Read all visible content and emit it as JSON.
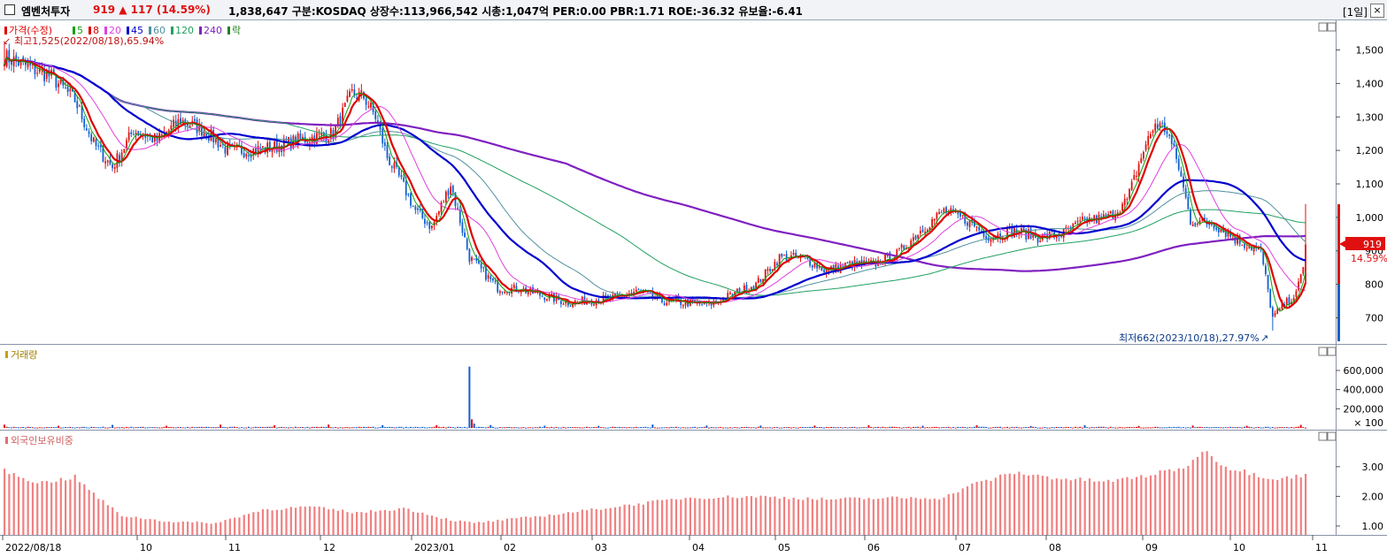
{
  "header": {
    "name": "엠벤처투자",
    "price_change": "919 ▲ 117 (14.59%)",
    "stats": "1,838,647  구분:KOSDAQ 상장수:113,966,542 시총:1,047억 PER:0.00 PBR:1.71 ROE:-36.32 유보율:-6.41",
    "period": "[1일]",
    "close_label": "×"
  },
  "price_panel": {
    "legend": [
      {
        "label": "가격(수정)",
        "color": "#e00000"
      },
      {
        "label": "5",
        "color": "#10a010"
      },
      {
        "label": "8",
        "color": "#e00000"
      },
      {
        "label": "20",
        "color": "#e040e0"
      },
      {
        "label": "45",
        "color": "#0000d0"
      },
      {
        "label": "60",
        "color": "#5090a0"
      },
      {
        "label": "120",
        "color": "#20a060"
      },
      {
        "label": "240",
        "color": "#8020c0"
      },
      {
        "label": "락",
        "color": "#208020"
      }
    ],
    "high_note": "최고1,525(2022/08/18),65.94%",
    "low_note": "최저662(2023/10/18),27.97%",
    "current_price": "919",
    "current_pct": "14.59%",
    "y_ticks": [
      "1,500",
      "1,400",
      "1,300",
      "1,200",
      "1,100",
      "1,000",
      "900",
      "800",
      "700"
    ]
  },
  "volume_panel": {
    "title": "거래량",
    "y_ticks": [
      "600,000",
      "400,000",
      "200,000"
    ],
    "unit": "× 100"
  },
  "foreign_panel": {
    "title": "외국인보유비중",
    "y_ticks": [
      "3.00",
      "2.00",
      "1.00"
    ]
  },
  "x_axis": {
    "labels": [
      "2022/08/18",
      "10",
      "11",
      "12",
      "2023/01",
      "02",
      "03",
      "04",
      "05",
      "06",
      "07",
      "08",
      "09",
      "10",
      "11"
    ]
  },
  "chart_data": {
    "type": "candlestick",
    "price_range": [
      630,
      1570
    ],
    "price_anchors": [
      [
        0,
        1480
      ],
      [
        10,
        1450
      ],
      [
        20,
        1420
      ],
      [
        30,
        1350
      ],
      [
        38,
        1220
      ],
      [
        46,
        1150
      ],
      [
        55,
        1260
      ],
      [
        65,
        1230
      ],
      [
        75,
        1290
      ],
      [
        85,
        1260
      ],
      [
        95,
        1200
      ],
      [
        105,
        1200
      ],
      [
        115,
        1210
      ],
      [
        125,
        1230
      ],
      [
        140,
        1250
      ],
      [
        148,
        1370
      ],
      [
        153,
        1360
      ],
      [
        158,
        1300
      ],
      [
        163,
        1180
      ],
      [
        168,
        1120
      ],
      [
        175,
        1020
      ],
      [
        182,
        970
      ],
      [
        190,
        1100
      ],
      [
        198,
        880
      ],
      [
        210,
        790
      ],
      [
        220,
        785
      ],
      [
        240,
        745
      ],
      [
        260,
        760
      ],
      [
        270,
        780
      ],
      [
        280,
        750
      ],
      [
        300,
        740
      ],
      [
        320,
        800
      ],
      [
        330,
        880
      ],
      [
        340,
        880
      ],
      [
        350,
        840
      ],
      [
        360,
        860
      ],
      [
        370,
        860
      ],
      [
        380,
        890
      ],
      [
        390,
        960
      ],
      [
        400,
        1020
      ],
      [
        410,
        990
      ],
      [
        420,
        940
      ],
      [
        430,
        960
      ],
      [
        440,
        940
      ],
      [
        450,
        950
      ],
      [
        460,
        990
      ],
      [
        470,
        1000
      ],
      [
        478,
        1050
      ],
      [
        485,
        1200
      ],
      [
        490,
        1280
      ],
      [
        495,
        1260
      ],
      [
        500,
        1150
      ],
      [
        505,
        990
      ],
      [
        515,
        980
      ],
      [
        525,
        930
      ],
      [
        535,
        900
      ],
      [
        540,
        700
      ],
      [
        545,
        740
      ],
      [
        550,
        770
      ],
      [
        553,
        850
      ],
      [
        554,
        919
      ]
    ],
    "volume_range": [
      0,
      720000
    ],
    "volume_spike": {
      "index": 198,
      "value": 640000
    },
    "foreign_ratio_range": [
      0.7,
      3.8
    ],
    "foreign_ratio_anchors": [
      [
        0,
        2.85
      ],
      [
        15,
        2.45
      ],
      [
        30,
        2.65
      ],
      [
        40,
        1.95
      ],
      [
        50,
        1.35
      ],
      [
        70,
        1.15
      ],
      [
        90,
        1.1
      ],
      [
        110,
        1.55
      ],
      [
        130,
        1.65
      ],
      [
        150,
        1.45
      ],
      [
        170,
        1.6
      ],
      [
        190,
        1.2
      ],
      [
        200,
        1.1
      ],
      [
        230,
        1.35
      ],
      [
        260,
        1.65
      ],
      [
        290,
        1.95
      ],
      [
        320,
        2.0
      ],
      [
        350,
        1.9
      ],
      [
        380,
        1.95
      ],
      [
        400,
        1.95
      ],
      [
        410,
        2.35
      ],
      [
        430,
        2.8
      ],
      [
        450,
        2.6
      ],
      [
        470,
        2.5
      ],
      [
        490,
        2.75
      ],
      [
        505,
        3.05
      ],
      [
        510,
        3.6
      ],
      [
        520,
        3.0
      ],
      [
        540,
        2.6
      ],
      [
        554,
        2.7
      ]
    ]
  }
}
